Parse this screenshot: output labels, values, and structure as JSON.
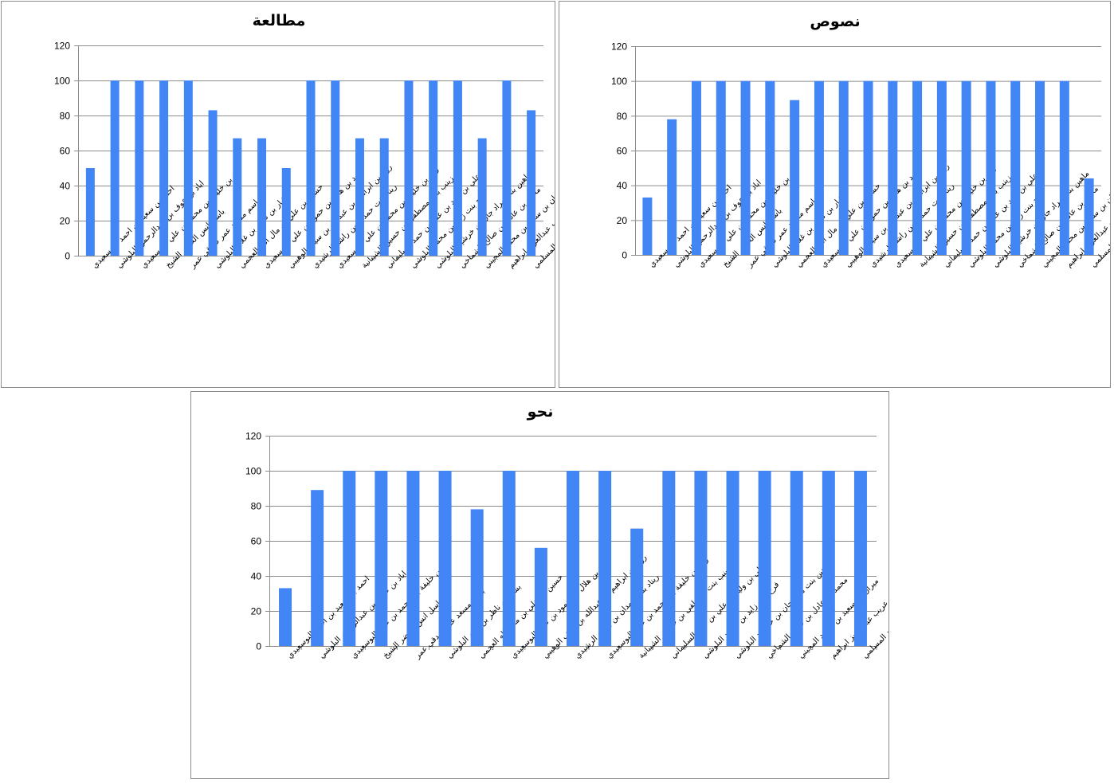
{
  "colors": {
    "bar": "#4285F4",
    "grid": "#8c8c8c"
  },
  "chart_data": [
    {
      "type": "bar",
      "title": "مطالعة",
      "ylim": [
        0,
        120
      ],
      "yticks": [
        0,
        20,
        40,
        60,
        80,
        100,
        120
      ],
      "grid": true,
      "categories": [
        "احمد بن سعيد بن احمد البوسعيدي",
        "اياد بن عوف بن عبدالرحمن البلوشي",
        "اياد بن خليفة بن محمد بن علي البوسعيدي",
        "باسل انس الخضر الشيخ",
        "باسم مسعد عمر صدقي عمر",
        "بشار بن ناظر بن غلام البلوشي",
        "حسين بن علي بن مال الله العجمي",
        "حمود بن هلال بن حمود بن علي البوسعيدي",
        "روح بن ابراهيم بن عبدالله بن سيف الوهيبي",
        "ريناد بنت حمدان بن راشد الرشيدي",
        "زياد بن خليفة بن محمد بن علي البوسعيدي",
        "زينب بنت مصطفى بن حسين الشيبانية",
        "علي بن وليد بن علي بن حمد السليماني",
        "فرح بنت زايد بن محمد البلوشي",
        "ماهين بنت مراد جان بن خرشيد البلوشي",
        "محمد بن عادل بن صالح الشماخي",
        "ميران بن سعيد بن محمد المجيني",
        "هنا احمد عريب عبدالعزيز ابراهيم",
        "عمار بن حميد بن سعيد المسلمي"
      ],
      "values": [
        50,
        100,
        100,
        100,
        100,
        83,
        67,
        67,
        50,
        100,
        100,
        67,
        67,
        100,
        100,
        100,
        67,
        100,
        83
      ]
    },
    {
      "type": "bar",
      "title": "نصوص",
      "ylim": [
        0,
        120
      ],
      "yticks": [
        0,
        20,
        40,
        60,
        80,
        100,
        120
      ],
      "grid": true,
      "categories": [
        "احمد بن سعيد بن احمد البوسعيدي",
        "اياد بن عوف بن عبدالرحمن البلوشي",
        "اياد بن خليفة بن محمد بن علي البوسعيدي",
        "باسل انس الخضر الشيخ",
        "باسم مسعد عمر صدقي عمر",
        "بشار بن ناظر بن غلام البلوشي",
        "حسين بن علي بن مال الله العجمي",
        "حمود بن هلال بن حمود بن علي البوسعيدي",
        "روح بن ابراهيم بن عبدالله بن سيف الوهيبي",
        "ريناد بنت حمدان بن راشد الرشيدي",
        "زياد بن خليفة بن محمد بن علي البوسعيدي",
        "زينب بنت مصطفى بن حسين الشيبانية",
        "علي بن وليد بن علي بن حمد السليماني",
        "فرح بنت زايد بن محمد البلوشي",
        "ماهين بنت مراد جان بن خرشيد البلوشي",
        "محمد بن عادل بن صالح الشماخي",
        "ميران بن سعيد بن محمد المجيني",
        "هنا احمد عريب عبدالعزيز ابراهيم",
        "عمار بن حميد بن سعيد المسلمي"
      ],
      "values": [
        33,
        78,
        100,
        100,
        100,
        100,
        89,
        100,
        100,
        100,
        100,
        100,
        100,
        100,
        100,
        100,
        100,
        100,
        44
      ]
    },
    {
      "type": "bar",
      "title": "نحو",
      "ylim": [
        0,
        120
      ],
      "yticks": [
        0,
        20,
        40,
        60,
        80,
        100,
        120
      ],
      "grid": true,
      "categories": [
        "احمد بن سعيد بن احمد البوسعيدي",
        "اياد بن عوف بن عبدالرحمن البلوشي",
        "اياد بن خليفة بن محمد بن علي البوسعيدي",
        "باسل انس الخضر الشيخ",
        "باسم مسعد عمر صدقي عمر",
        "بشار بن ناظر بن غلام البلوشي",
        "حسين بن علي بن مال الله العجمي",
        "حمود بن هلال بن حمود بن علي البوسعيدي",
        "روح بن ابراهيم بن عبدالله بن سيف الوهيبي",
        "ريناد بنت حمدان بن راشد الرشيدي",
        "زياد بن خليفة بن محمد بن علي البوسعيدي",
        "زينب بنت مصطفى بن حسين الشيبانية",
        "علي بن وليد بن علي بن حمد السليماني",
        "فرح بنت زايد بن محمد البلوشي",
        "ماهين بنت مراد جان بن خرشيد البلوشي",
        "محمد بن عادل بن صالح الشماخي",
        "ميران بن سعيد بن محمد المجيني",
        "هنا احمد عريب عبدالعزيز ابراهيم",
        "عمار بن حميد بن سعيد المسلمي"
      ],
      "values": [
        33,
        89,
        100,
        100,
        100,
        100,
        78,
        100,
        56,
        100,
        100,
        67,
        100,
        100,
        100,
        100,
        100,
        100,
        100
      ]
    }
  ]
}
